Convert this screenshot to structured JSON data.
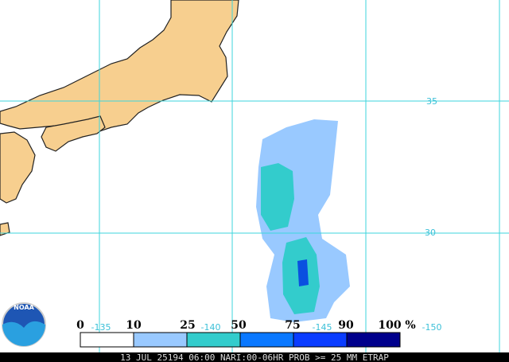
{
  "map": {
    "lat_labels": [
      "35",
      "30"
    ],
    "lon_labels": [
      "-135",
      "-140",
      "-145",
      "-150"
    ]
  },
  "legend": {
    "labels": [
      "0",
      "10",
      "25",
      "50",
      "75",
      "90",
      "100"
    ],
    "unit": "%",
    "colors": [
      "#ffffff",
      "#99c9ff",
      "#33cccc",
      "#0a78ff",
      "#0a3cff",
      "#00008c"
    ]
  },
  "footer": "13 JUL 25194 06:00 NARI:00-06HR PROB >= 25 MM ETRAP",
  "logo": "NOAA"
}
